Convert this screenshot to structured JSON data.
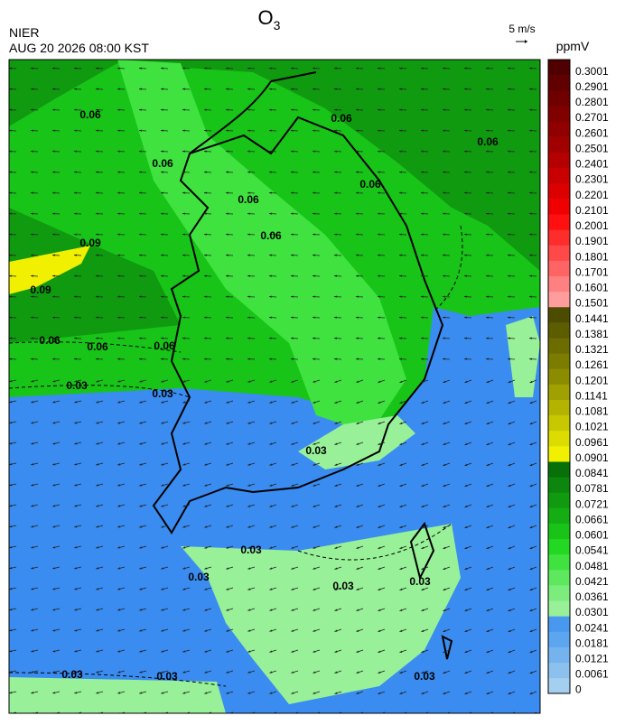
{
  "header": {
    "title": {
      "main": "O",
      "subscript": "3"
    },
    "source": "NIER",
    "timestamp": "AUG 20 2026 08:00 KST",
    "wind_scale": "5 m/s"
  },
  "colorbar": {
    "unit": "ppmV",
    "labels": [
      "0",
      "0.0061",
      "0.0121",
      "0.0181",
      "0.0241",
      "0.0301",
      "0.0361",
      "0.0421",
      "0.0481",
      "0.0541",
      "0.0601",
      "0.0661",
      "0.0721",
      "0.0781",
      "0.0841",
      "0.0901",
      "0.0961",
      "0.1021",
      "0.1081",
      "0.1141",
      "0.1201",
      "0.1261",
      "0.1321",
      "0.1381",
      "0.1441",
      "0.1501",
      "0.1601",
      "0.1701",
      "0.1801",
      "0.1901",
      "0.2001",
      "0.2101",
      "0.2201",
      "0.2301",
      "0.2401",
      "0.2501",
      "0.2601",
      "0.2701",
      "0.2801",
      "0.2901",
      "0.3001"
    ],
    "colors": [
      "#a4cfee",
      "#8cc1ee",
      "#74b3ee",
      "#5ca6f0",
      "#4898f0",
      "#98f098",
      "#7ced7c",
      "#5ee85e",
      "#3fe23f",
      "#22d822",
      "#18c418",
      "#14ae14",
      "#109a10",
      "#0c860c",
      "#087008",
      "#f0f000",
      "#dcdc00",
      "#c8c800",
      "#b4b400",
      "#a0a000",
      "#8c8c00",
      "#7c7c00",
      "#6c6c00",
      "#5c5c00",
      "#4c4c00",
      "#ff9c9c",
      "#ff8080",
      "#ff6464",
      "#ff4848",
      "#ff2c2c",
      "#ff1010",
      "#f00000",
      "#dc0000",
      "#c80000",
      "#b40000",
      "#a00000",
      "#900000",
      "#800000",
      "#700000",
      "#600000",
      "#500000"
    ]
  },
  "map": {
    "contour_labels": [
      "0.06",
      "0.06",
      "0.06",
      "0.06",
      "0.06",
      "0.06",
      "0.06",
      "0.09",
      "0.09",
      "0.06",
      "0.06",
      "0.06",
      "0.03",
      "0.03",
      "0.03",
      "0.03",
      "0.03",
      "0.03",
      "0.03",
      "0.03",
      "0.03",
      "0.03"
    ]
  }
}
